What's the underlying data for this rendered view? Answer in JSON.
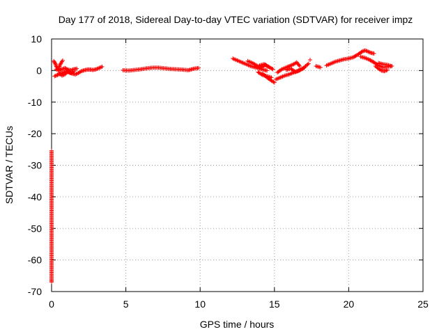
{
  "chart_data": {
    "type": "scatter",
    "title": "Day 177 of 2018, Sidereal Day-to-day VTEC variation (SDTVAR) for receiver impz",
    "xlabel": "GPS time / hours",
    "ylabel": "SDTVAR / TECUs",
    "xlim": [
      0,
      25
    ],
    "ylim": [
      -70,
      10
    ],
    "xticks": [
      0,
      5,
      10,
      15,
      20,
      25
    ],
    "yticks": [
      -70,
      -60,
      -50,
      -40,
      -30,
      -20,
      -10,
      0,
      10
    ],
    "grid": true,
    "marker": "plus",
    "color": "#ff0000",
    "series": [
      {
        "name": "SDTVAR",
        "segments": [
          [
            [
              0.15,
              3.0
            ],
            [
              0.25,
              2.2
            ],
            [
              0.35,
              1.0
            ],
            [
              0.45,
              0.4
            ],
            [
              0.55,
              1.6
            ],
            [
              0.65,
              2.5
            ],
            [
              0.75,
              3.2
            ]
          ],
          [
            [
              0.2,
              -1.8
            ],
            [
              0.4,
              -1.4
            ],
            [
              0.6,
              -1.0
            ],
            [
              0.8,
              -0.6
            ],
            [
              1.0,
              -0.2
            ],
            [
              1.2,
              -0.6
            ],
            [
              1.4,
              -1.0
            ],
            [
              1.6,
              -1.2
            ],
            [
              1.8,
              -0.8
            ],
            [
              2.0,
              -0.2
            ],
            [
              2.2,
              0.1
            ],
            [
              2.4,
              0.3
            ],
            [
              2.6,
              0.3
            ],
            [
              2.8,
              0.2
            ],
            [
              3.0,
              0.4
            ],
            [
              3.2,
              0.8
            ],
            [
              3.4,
              1.2
            ]
          ],
          [
            [
              0.3,
              0.4
            ],
            [
              0.5,
              0.0
            ],
            [
              0.7,
              0.4
            ],
            [
              0.9,
              0.8
            ],
            [
              1.1,
              0.3
            ],
            [
              1.3,
              0.1
            ],
            [
              1.5,
              0.4
            ],
            [
              1.7,
              0.6
            ]
          ],
          [
            [
              0.5,
              -0.8
            ],
            [
              0.7,
              -1.6
            ],
            [
              0.9,
              -1.2
            ],
            [
              1.1,
              -0.4
            ],
            [
              1.3,
              -0.8
            ],
            [
              1.5,
              -0.2
            ]
          ],
          [
            [
              4.8,
              0.1
            ],
            [
              5.2,
              0.0
            ],
            [
              5.6,
              0.2
            ],
            [
              6.0,
              0.4
            ],
            [
              6.4,
              0.7
            ],
            [
              6.8,
              0.9
            ],
            [
              7.2,
              0.9
            ],
            [
              7.6,
              0.7
            ],
            [
              8.0,
              0.5
            ],
            [
              8.4,
              0.4
            ],
            [
              8.8,
              0.3
            ],
            [
              9.2,
              0.1
            ],
            [
              9.6,
              0.6
            ],
            [
              9.9,
              0.8
            ]
          ],
          [
            [
              12.2,
              3.8
            ],
            [
              12.5,
              3.2
            ],
            [
              12.8,
              2.6
            ],
            [
              13.1,
              2.0
            ],
            [
              13.4,
              1.4
            ],
            [
              13.7,
              1.0
            ],
            [
              14.0,
              0.6
            ],
            [
              14.3,
              0.2
            ],
            [
              14.5,
              0.0
            ]
          ],
          [
            [
              13.2,
              3.0
            ],
            [
              13.5,
              2.4
            ],
            [
              13.8,
              1.6
            ],
            [
              14.1,
              1.0
            ],
            [
              14.4,
              1.8
            ],
            [
              14.6,
              1.2
            ]
          ],
          [
            [
              14.2,
              -1.0
            ],
            [
              14.5,
              -2.2
            ],
            [
              14.8,
              -3.2
            ],
            [
              15.0,
              -3.8
            ]
          ],
          [
            [
              13.9,
              -0.5
            ],
            [
              14.2,
              -1.4
            ],
            [
              14.5,
              -1.8
            ],
            [
              14.8,
              -2.2
            ]
          ],
          [
            [
              14.0,
              1.6
            ],
            [
              14.3,
              2.0
            ],
            [
              14.6,
              1.2
            ],
            [
              14.9,
              0.4
            ]
          ],
          [
            [
              15.2,
              -0.6
            ],
            [
              15.5,
              0.4
            ],
            [
              15.8,
              1.0
            ],
            [
              16.0,
              1.4
            ],
            [
              16.3,
              2.0
            ],
            [
              16.5,
              2.6
            ],
            [
              16.7,
              1.4
            ]
          ],
          [
            [
              15.1,
              -2.8
            ],
            [
              15.4,
              -2.2
            ],
            [
              15.7,
              -1.6
            ],
            [
              16.0,
              -1.2
            ],
            [
              16.3,
              -0.6
            ],
            [
              16.6,
              -0.2
            ],
            [
              16.9,
              0.6
            ],
            [
              17.1,
              1.4
            ],
            [
              17.3,
              2.2
            ]
          ],
          [
            [
              15.8,
              0.2
            ],
            [
              16.1,
              0.6
            ],
            [
              16.4,
              -0.4
            ],
            [
              16.7,
              0.2
            ],
            [
              17.0,
              0.8
            ]
          ],
          [
            [
              17.4,
              3.4
            ]
          ],
          [
            [
              17.8,
              1.4
            ],
            [
              18.1,
              1.0
            ]
          ],
          [
            [
              18.5,
              1.6
            ],
            [
              18.8,
              2.2
            ],
            [
              19.1,
              2.8
            ],
            [
              19.4,
              3.2
            ],
            [
              19.7,
              3.6
            ],
            [
              20.0,
              3.8
            ],
            [
              20.3,
              4.2
            ],
            [
              20.6,
              5.0
            ],
            [
              20.9,
              6.0
            ],
            [
              21.1,
              6.4
            ],
            [
              21.3,
              6.0
            ],
            [
              21.5,
              5.6
            ],
            [
              21.7,
              5.4
            ]
          ],
          [
            [
              20.8,
              4.4
            ],
            [
              21.1,
              4.0
            ],
            [
              21.4,
              3.4
            ],
            [
              21.7,
              2.6
            ],
            [
              22.0,
              1.6
            ],
            [
              22.3,
              1.0
            ],
            [
              22.6,
              1.2
            ],
            [
              22.9,
              1.4
            ]
          ],
          [
            [
              21.8,
              1.4
            ],
            [
              22.0,
              0.6
            ],
            [
              22.2,
              0.0
            ],
            [
              22.4,
              -0.2
            ],
            [
              22.6,
              0.2
            ]
          ],
          [
            [
              22.0,
              2.4
            ],
            [
              22.3,
              2.0
            ],
            [
              22.6,
              1.8
            ],
            [
              22.9,
              1.4
            ]
          ],
          [
            [
              0.0,
              -25.4
            ],
            [
              0.0,
              -37.3
            ],
            [
              0.0,
              -66.4
            ],
            [
              0.0,
              -67.0
            ]
          ]
        ]
      }
    ]
  }
}
